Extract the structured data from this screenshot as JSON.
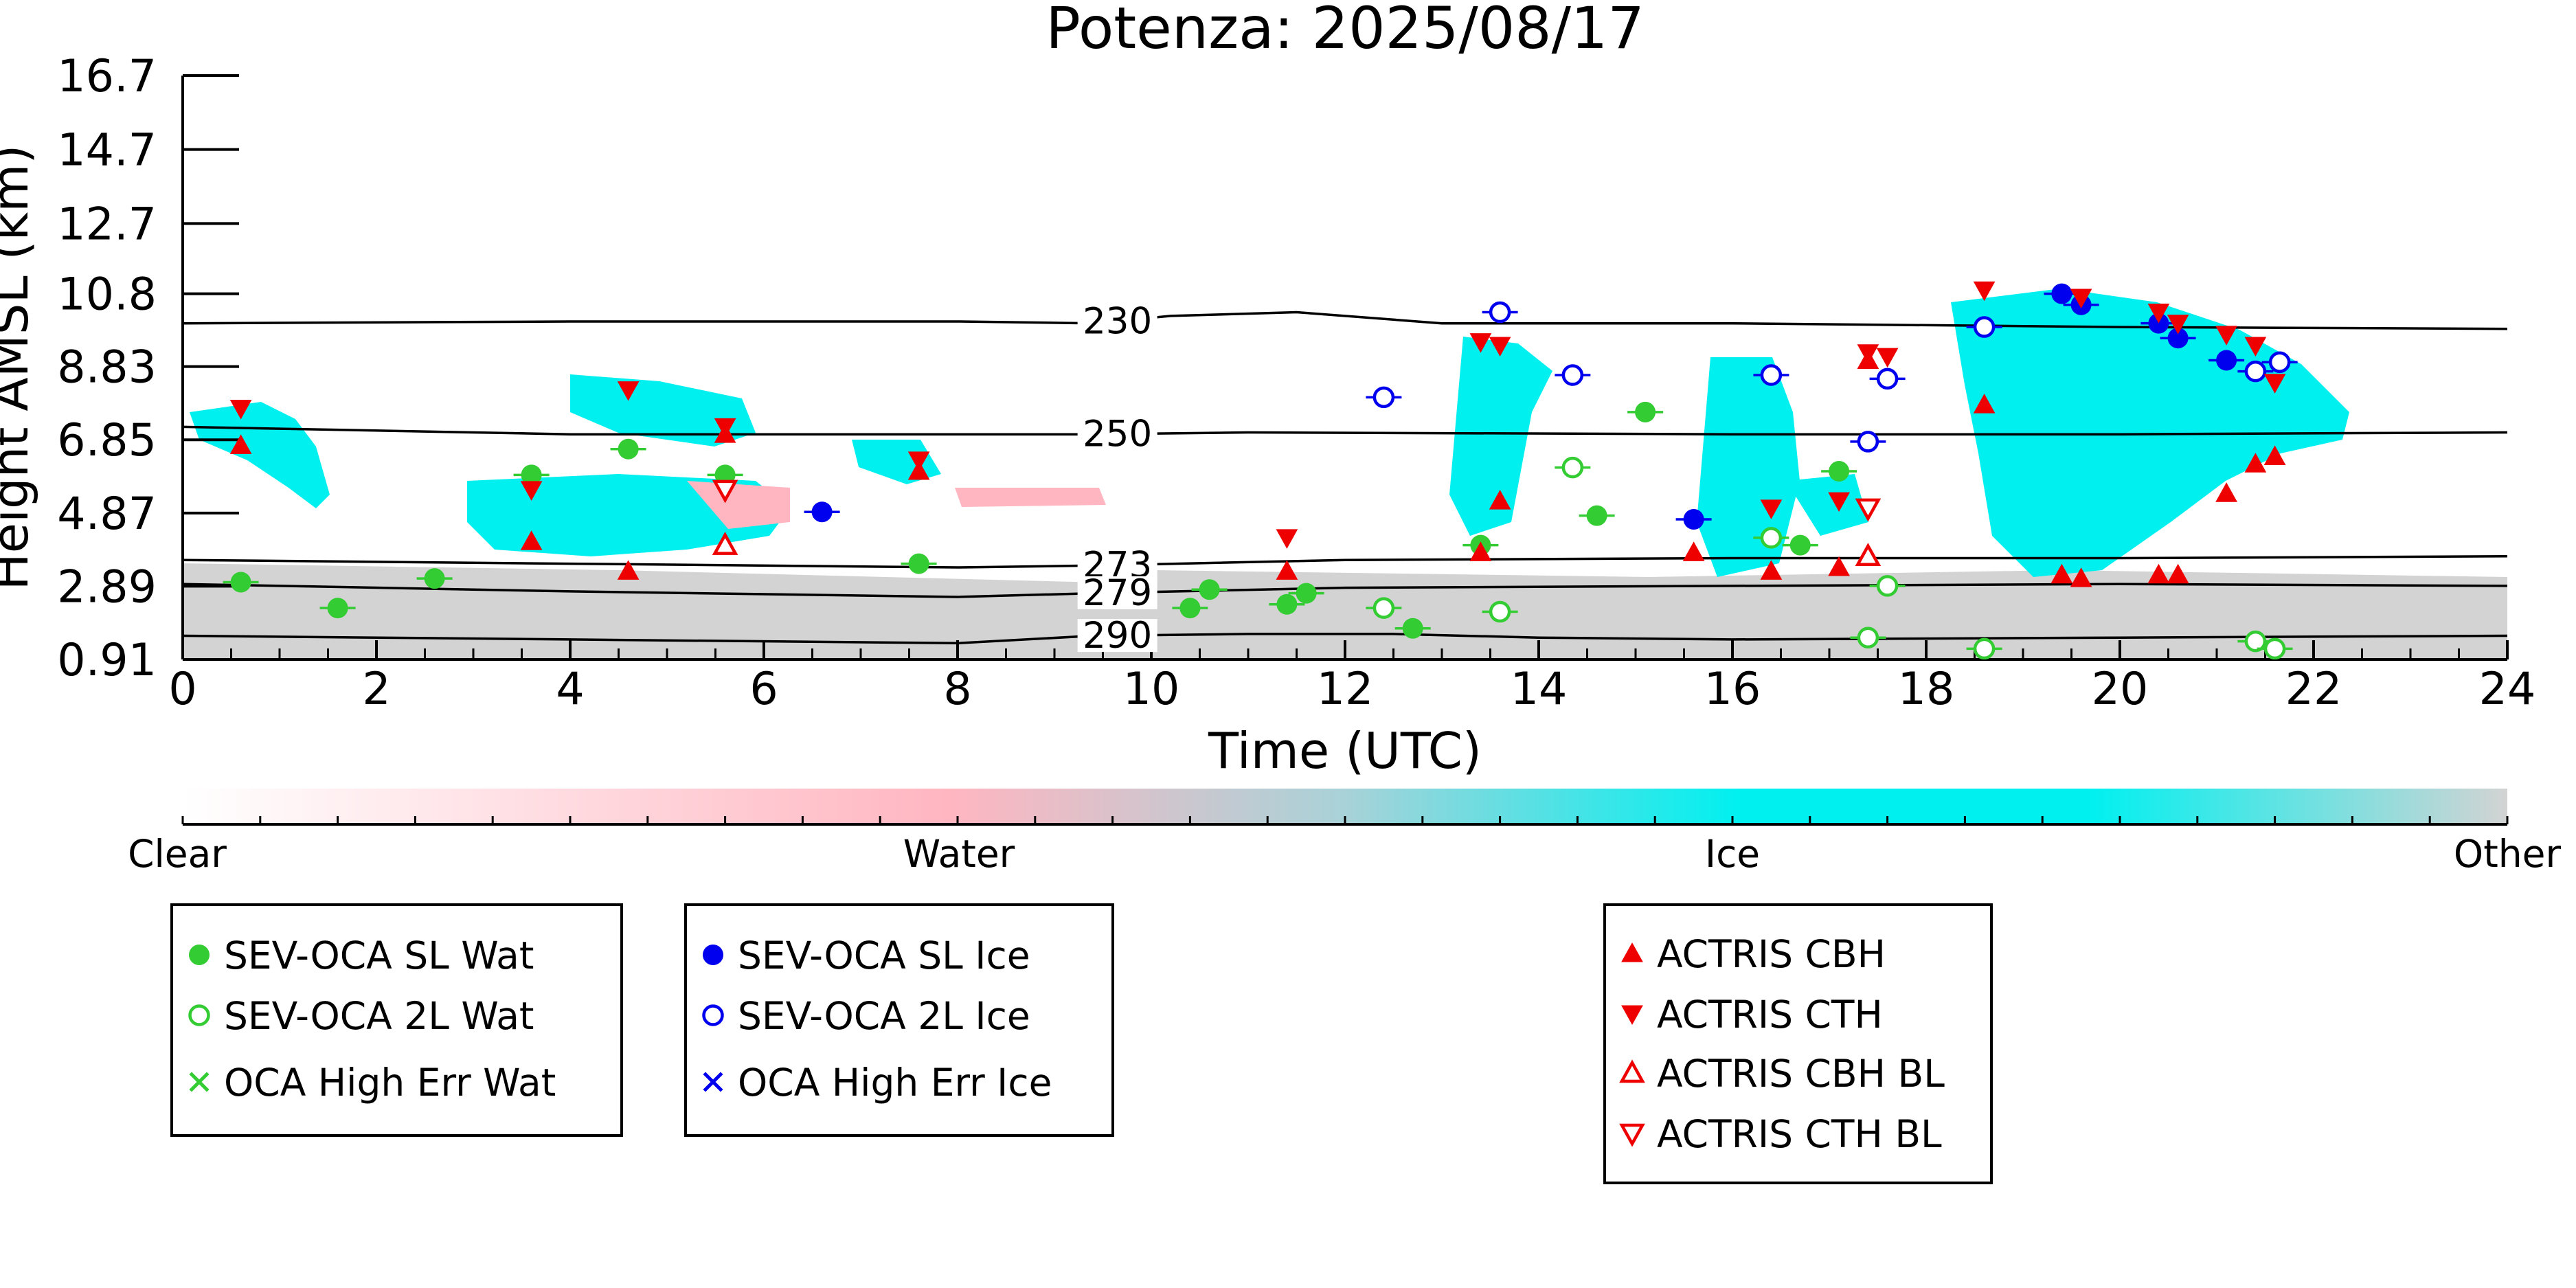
{
  "chart_data": {
    "type": "scatter",
    "title": "Potenza: 2025/08/17",
    "xlabel": "Time (UTC)",
    "ylabel": "Height AMSL (km)",
    "xlim": [
      0,
      24
    ],
    "ylim": [
      0.91,
      16.7
    ],
    "x_ticks": [
      "0",
      "2",
      "4",
      "6",
      "8",
      "10",
      "12",
      "14",
      "16",
      "18",
      "20",
      "22",
      "24"
    ],
    "y_ticks": [
      "0.91",
      "2.89",
      "4.87",
      "6.85",
      "8.83",
      "10.8",
      "12.7",
      "14.7",
      "16.7"
    ],
    "colorbar": {
      "labels": [
        "Clear",
        "Water",
        "Ice",
        "Other"
      ],
      "colors": [
        "#ffffff",
        "#ffb6c1",
        "#00f0f0",
        "#d3d3d3"
      ]
    },
    "contours": [
      {
        "label": "230",
        "label_x": 9.65,
        "points": [
          [
            0,
            10.0
          ],
          [
            4,
            10.05
          ],
          [
            8,
            10.05
          ],
          [
            9.4,
            10.0
          ],
          [
            10.2,
            10.2
          ],
          [
            11.5,
            10.3
          ],
          [
            13,
            10.0
          ],
          [
            16,
            10.0
          ],
          [
            20,
            9.9
          ],
          [
            24,
            9.85
          ]
        ]
      },
      {
        "label": "250",
        "label_x": 9.65,
        "points": [
          [
            0,
            7.2
          ],
          [
            4,
            7.0
          ],
          [
            8,
            7.0
          ],
          [
            9.4,
            7.0
          ],
          [
            11,
            7.05
          ],
          [
            16,
            7.0
          ],
          [
            20,
            7.0
          ],
          [
            24,
            7.05
          ]
        ]
      },
      {
        "label": "273",
        "label_x": 9.65,
        "points": [
          [
            0,
            3.6
          ],
          [
            4,
            3.5
          ],
          [
            8,
            3.4
          ],
          [
            9.4,
            3.45
          ],
          [
            12,
            3.6
          ],
          [
            16,
            3.65
          ],
          [
            20,
            3.65
          ],
          [
            24,
            3.7
          ]
        ]
      },
      {
        "label": "279",
        "label_x": 9.65,
        "points": [
          [
            0,
            2.95
          ],
          [
            4,
            2.75
          ],
          [
            8,
            2.6
          ],
          [
            9.4,
            2.7
          ],
          [
            12,
            2.85
          ],
          [
            16,
            2.9
          ],
          [
            20,
            2.95
          ],
          [
            24,
            2.9
          ]
        ]
      },
      {
        "label": "290",
        "label_x": 9.65,
        "points": [
          [
            0,
            1.55
          ],
          [
            4,
            1.45
          ],
          [
            8,
            1.35
          ],
          [
            9.4,
            1.55
          ],
          [
            11,
            1.6
          ],
          [
            12.5,
            1.6
          ],
          [
            14,
            1.5
          ],
          [
            16,
            1.45
          ],
          [
            20,
            1.5
          ],
          [
            24,
            1.55
          ]
        ]
      }
    ],
    "series": [
      {
        "name": "SEV-OCA SL Wat",
        "marker": "filled-circle",
        "color": "#33cc33",
        "points": [
          [
            0.6,
            3.0
          ],
          [
            1.6,
            2.3
          ],
          [
            2.6,
            3.1
          ],
          [
            3.6,
            5.9
          ],
          [
            4.6,
            6.6
          ],
          [
            5.6,
            5.9
          ],
          [
            7.6,
            3.5
          ],
          [
            10.4,
            2.3
          ],
          [
            10.6,
            2.8
          ],
          [
            11.4,
            2.4
          ],
          [
            11.6,
            2.7
          ],
          [
            12.7,
            1.75
          ],
          [
            13.4,
            4.0
          ],
          [
            14.6,
            4.8
          ],
          [
            15.1,
            7.6
          ],
          [
            16.7,
            4.0
          ],
          [
            17.1,
            6.0
          ]
        ]
      },
      {
        "name": "SEV-OCA 2L Wat",
        "marker": "open-circle",
        "color": "#33cc33",
        "points": [
          [
            12.4,
            2.3
          ],
          [
            13.6,
            2.2
          ],
          [
            14.35,
            6.1
          ],
          [
            16.4,
            4.2
          ],
          [
            17.4,
            1.5
          ],
          [
            17.6,
            2.9
          ],
          [
            18.6,
            1.2
          ],
          [
            21.4,
            1.4
          ],
          [
            21.6,
            1.2
          ]
        ]
      },
      {
        "name": "OCA High Err Wat",
        "marker": "x",
        "color": "#33cc33",
        "points": []
      },
      {
        "name": "SEV-OCA SL Ice",
        "marker": "filled-circle",
        "color": "#0000ee",
        "points": [
          [
            6.6,
            4.9
          ],
          [
            15.6,
            4.7
          ],
          [
            19.4,
            10.8
          ],
          [
            19.6,
            10.5
          ],
          [
            20.4,
            10.0
          ],
          [
            20.6,
            9.6
          ],
          [
            21.1,
            9.0
          ]
        ]
      },
      {
        "name": "SEV-OCA 2L Ice",
        "marker": "open-circle",
        "color": "#0000ee",
        "points": [
          [
            12.4,
            8.0
          ],
          [
            13.6,
            10.3
          ],
          [
            14.35,
            8.6
          ],
          [
            16.4,
            8.6
          ],
          [
            17.4,
            6.8
          ],
          [
            17.6,
            8.5
          ],
          [
            18.6,
            9.9
          ],
          [
            21.4,
            8.7
          ],
          [
            21.65,
            8.95
          ]
        ]
      },
      {
        "name": "OCA High Err Ice",
        "marker": "x",
        "color": "#0000ee",
        "points": []
      },
      {
        "name": "ACTRIS CBH",
        "marker": "triangle-up",
        "color": "#ee0000",
        "points": [
          [
            0.6,
            6.7
          ],
          [
            3.6,
            4.1
          ],
          [
            4.6,
            3.3
          ],
          [
            5.6,
            7.0
          ],
          [
            7.6,
            6.0
          ],
          [
            11.4,
            3.3
          ],
          [
            13.4,
            3.8
          ],
          [
            13.6,
            5.2
          ],
          [
            15.6,
            3.8
          ],
          [
            16.4,
            3.3
          ],
          [
            17.1,
            3.4
          ],
          [
            17.4,
            9.0
          ],
          [
            18.6,
            7.8
          ],
          [
            19.4,
            3.2
          ],
          [
            19.6,
            3.1
          ],
          [
            20.4,
            3.2
          ],
          [
            20.6,
            3.2
          ],
          [
            21.1,
            5.4
          ],
          [
            21.4,
            6.2
          ],
          [
            21.6,
            6.4
          ]
        ]
      },
      {
        "name": "ACTRIS CTH",
        "marker": "triangle-down",
        "color": "#ee0000",
        "points": [
          [
            0.6,
            7.7
          ],
          [
            3.6,
            5.5
          ],
          [
            4.6,
            8.2
          ],
          [
            5.6,
            7.2
          ],
          [
            7.6,
            6.3
          ],
          [
            11.4,
            4.2
          ],
          [
            13.4,
            9.5
          ],
          [
            13.6,
            9.4
          ],
          [
            16.4,
            5.0
          ],
          [
            17.1,
            5.2
          ],
          [
            17.4,
            9.2
          ],
          [
            17.6,
            9.1
          ],
          [
            18.6,
            10.9
          ],
          [
            19.6,
            10.7
          ],
          [
            20.4,
            10.3
          ],
          [
            20.6,
            10.0
          ],
          [
            21.1,
            9.7
          ],
          [
            21.4,
            9.4
          ],
          [
            21.6,
            8.4
          ]
        ]
      },
      {
        "name": "ACTRIS CBH BL",
        "marker": "open-triangle-up",
        "color": "#ee0000",
        "points": [
          [
            5.6,
            4.0
          ],
          [
            17.4,
            3.7
          ]
        ]
      },
      {
        "name": "ACTRIS CTH BL",
        "marker": "open-triangle-down",
        "color": "#ee0000",
        "points": [
          [
            5.6,
            5.5
          ],
          [
            17.4,
            5.0
          ]
        ]
      }
    ]
  }
}
